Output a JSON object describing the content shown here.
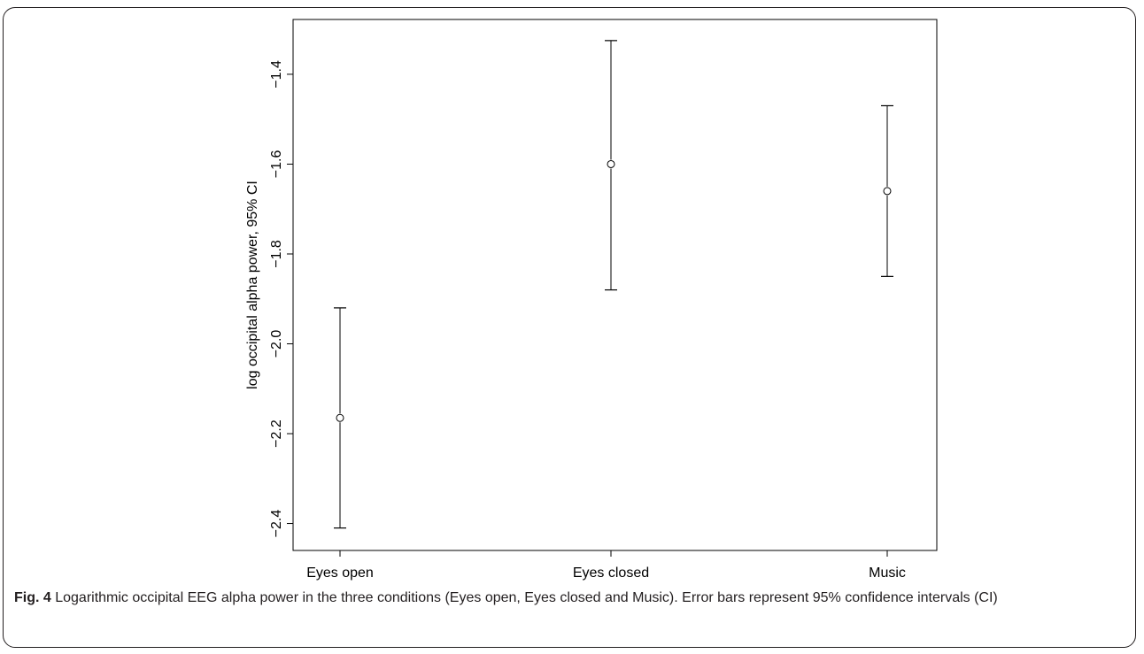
{
  "chart_data": {
    "type": "scatter",
    "title": "",
    "xlabel": "",
    "ylabel": "log occipital alpha power, 95% CI",
    "categories": [
      "Eyes open",
      "Eyes closed",
      "Music"
    ],
    "points": [
      {
        "category": "Eyes open",
        "mean": -2.165,
        "ci_low": -2.41,
        "ci_high": -1.92
      },
      {
        "category": "Eyes closed",
        "mean": -1.6,
        "ci_low": -1.88,
        "ci_high": -1.325
      },
      {
        "category": "Music",
        "mean": -1.66,
        "ci_low": -1.85,
        "ci_high": -1.47
      }
    ],
    "yticks": [
      "-2.4",
      "-2.2",
      "-2.0",
      "-1.8",
      "-1.6",
      "-1.4"
    ],
    "ylim": [
      -2.46,
      -1.278
    ],
    "grid": false,
    "legend": "none"
  },
  "caption": {
    "label": "Fig. 4",
    "text": " Logarithmic occipital EEG alpha power in the three conditions (Eyes open, Eyes closed and Music). Error bars represent 95% confidence intervals (CI)"
  }
}
